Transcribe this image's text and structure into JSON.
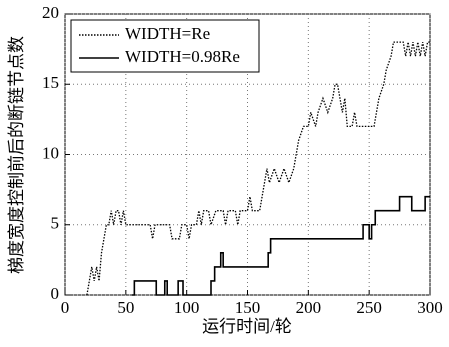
{
  "chart_data": {
    "type": "line",
    "xlabel": "运行时间/轮",
    "ylabel": "梯度宽度控制前后的断链节点数",
    "xlim": [
      0,
      300
    ],
    "xticks": [
      0,
      50,
      100,
      150,
      200,
      250,
      300
    ],
    "ylim": [
      0,
      20
    ],
    "yticks": [
      0,
      5,
      10,
      15,
      20
    ],
    "grid": true,
    "legend": "upper left",
    "series": [
      {
        "name": "WIDTH=Re",
        "color": "#000000",
        "line_style": "dotted",
        "x": [
          18,
          20,
          22,
          24,
          26,
          28,
          30,
          32,
          34,
          36,
          38,
          40,
          42,
          44,
          46,
          48,
          50,
          70,
          72,
          74,
          86,
          88,
          94,
          96,
          100,
          102,
          104,
          108,
          110,
          112,
          114,
          118,
          120,
          124,
          130,
          132,
          134,
          140,
          142,
          144,
          150,
          152,
          154,
          160,
          162,
          164,
          166,
          168,
          172,
          176,
          180,
          184,
          188,
          190,
          192,
          196,
          200,
          202,
          206,
          208,
          212,
          216,
          220,
          222,
          224,
          226,
          228,
          230,
          232,
          236,
          238,
          240,
          254,
          256,
          258,
          262,
          264,
          268,
          270,
          278,
          280,
          282,
          284,
          286,
          288,
          290,
          292,
          294,
          296,
          298,
          300
        ],
        "values": [
          0,
          1,
          2,
          1,
          2,
          1,
          3,
          4,
          5,
          5,
          6,
          5,
          6,
          6,
          5,
          6,
          5,
          5,
          4,
          5,
          5,
          4,
          4,
          5,
          5,
          4,
          5,
          5,
          6,
          5,
          6,
          6,
          5,
          6,
          6,
          5,
          6,
          6,
          5,
          6,
          6,
          7,
          6,
          6,
          7,
          8,
          9,
          8,
          9,
          8,
          9,
          8,
          9,
          10,
          11,
          12,
          12,
          13,
          12,
          13,
          14,
          13,
          14,
          15,
          15,
          14,
          13,
          14,
          12,
          12,
          13,
          12,
          12,
          13,
          14,
          15,
          16,
          17,
          18,
          18,
          17,
          18,
          17,
          18,
          17,
          18,
          17,
          18,
          17,
          18,
          18
        ]
      },
      {
        "name": "WIDTH=0.98Re",
        "color": "#000000",
        "line_style": "solid",
        "x": [
          55,
          57,
          57,
          75,
          75,
          82,
          82,
          84,
          84,
          93,
          93,
          97,
          97,
          120,
          120,
          123,
          123,
          128,
          128,
          130,
          130,
          167,
          167,
          169,
          169,
          245,
          245,
          250,
          250,
          252,
          252,
          255,
          255,
          275,
          275,
          285,
          285,
          296,
          296,
          300
        ],
        "values": [
          0,
          0,
          1,
          1,
          0,
          0,
          1,
          1,
          0,
          0,
          1,
          1,
          0,
          0,
          1,
          1,
          2,
          2,
          3,
          3,
          2,
          2,
          3,
          3,
          4,
          4,
          5,
          5,
          4,
          4,
          5,
          5,
          6,
          6,
          7,
          7,
          6,
          6,
          7,
          7
        ]
      }
    ]
  }
}
